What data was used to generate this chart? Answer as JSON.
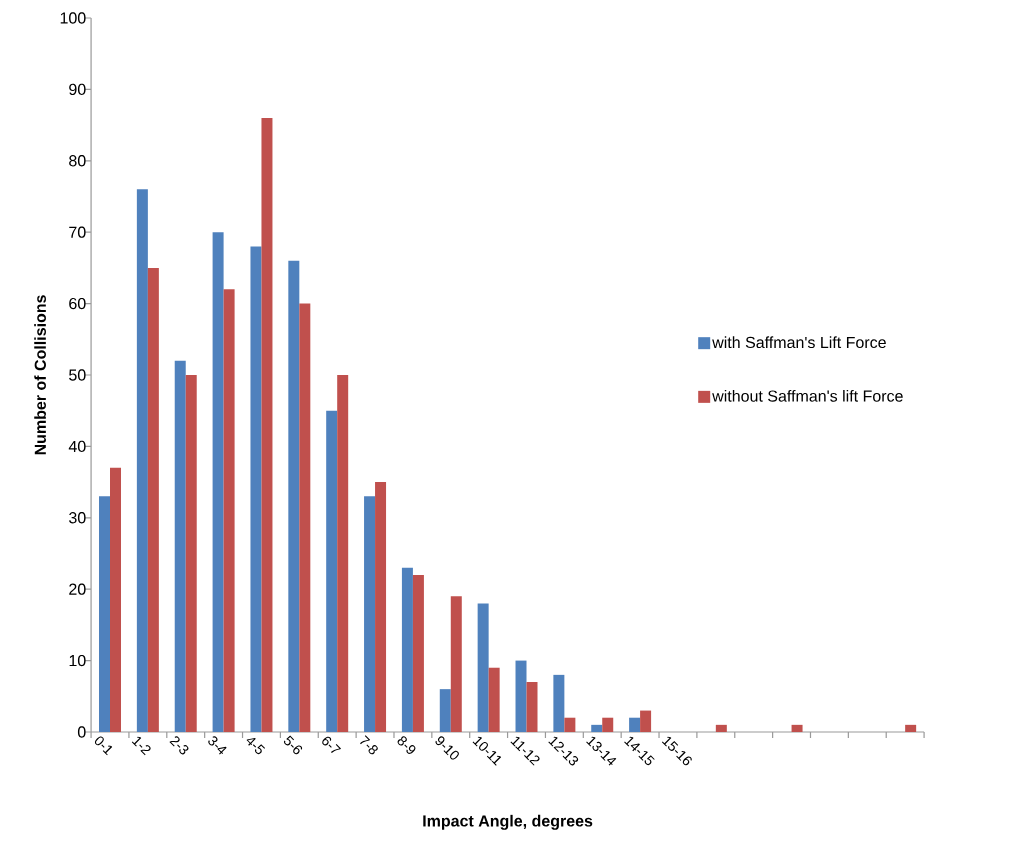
{
  "chart_data": {
    "type": "bar",
    "xlabel": "Impact Angle, degrees",
    "ylabel": "Number of Collisions",
    "categories": [
      "0-1",
      "1-2",
      "2-3",
      "3-4",
      "4-5",
      "5-6",
      "6-7",
      "7-8",
      "8-9",
      "9-10",
      "10-11",
      "11-12",
      "12-13",
      "13-14",
      "14-15",
      "15-16",
      null,
      null,
      null,
      null,
      null,
      null
    ],
    "series": [
      {
        "name": "with Saffman's Lift Force",
        "color": "#4f81bd",
        "values": [
          33,
          76,
          52,
          70,
          68,
          66,
          45,
          33,
          23,
          6,
          18,
          10,
          8,
          1,
          2,
          0,
          0,
          0,
          0,
          0,
          0,
          0
        ]
      },
      {
        "name": "without Saffman's lift Force",
        "color": "#c0504d",
        "values": [
          37,
          65,
          50,
          62,
          86,
          60,
          50,
          35,
          22,
          19,
          9,
          7,
          2,
          2,
          3,
          0,
          1,
          0,
          1,
          0,
          0,
          1
        ]
      }
    ],
    "ylim": [
      0,
      100
    ],
    "yticks": [
      0,
      10,
      20,
      30,
      40,
      50,
      60,
      70,
      80,
      90,
      100
    ],
    "grid": false,
    "legend": "right"
  }
}
